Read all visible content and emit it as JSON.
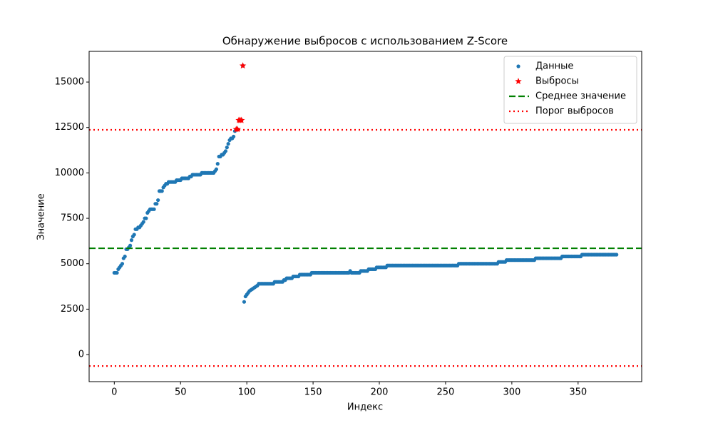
{
  "chart_data": {
    "type": "scatter",
    "title": "Обнаружение выбросов с использованием Z-Score",
    "xlabel": "Индекс",
    "ylabel": "Значение",
    "xlim": [
      -19,
      398
    ],
    "ylim": [
      -1490,
      16690
    ],
    "xticks": [
      0,
      50,
      100,
      150,
      200,
      250,
      300,
      350
    ],
    "yticks": [
      0,
      2500,
      5000,
      7500,
      10000,
      12500,
      15000
    ],
    "legend": "upper right",
    "series": [
      {
        "name": "Данные",
        "color": "#1f77b4",
        "marker": "circle",
        "x": [
          0,
          1,
          2,
          3,
          4,
          5,
          6,
          7,
          8,
          9,
          10,
          11,
          12,
          13,
          14,
          15,
          16,
          17,
          18,
          19,
          20,
          21,
          22,
          23,
          24,
          25,
          26,
          27,
          28,
          29,
          30,
          31,
          32,
          33,
          34,
          35,
          36,
          37,
          38,
          39,
          40,
          41,
          42,
          43,
          44,
          45,
          46,
          47,
          48,
          49,
          50,
          51,
          52,
          53,
          54,
          55,
          56,
          57,
          58,
          59,
          60,
          61,
          62,
          63,
          64,
          65,
          66,
          67,
          68,
          69,
          70,
          71,
          72,
          73,
          74,
          75,
          76,
          77,
          78,
          79,
          80,
          81,
          82,
          83,
          84,
          85,
          86,
          87,
          88,
          89,
          90,
          91,
          92,
          93,
          94,
          95,
          96,
          97,
          98,
          99,
          100,
          101,
          102,
          103,
          104,
          105,
          106,
          107,
          108,
          109,
          110,
          111,
          112,
          113,
          114,
          115,
          116,
          117,
          118,
          119,
          120,
          121,
          122,
          123,
          124,
          125,
          126,
          127,
          128,
          129,
          130,
          131,
          132,
          133,
          134,
          135,
          136,
          137,
          138,
          139,
          140,
          141,
          142,
          143,
          144,
          145,
          146,
          147,
          148,
          149,
          150,
          151,
          152,
          153,
          154,
          155,
          156,
          157,
          158,
          159,
          160,
          161,
          162,
          163,
          164,
          165,
          166,
          167,
          168,
          169,
          170,
          171,
          172,
          173,
          174,
          175,
          176,
          177,
          178,
          179,
          180,
          181,
          182,
          183,
          184,
          185,
          186,
          187,
          188,
          189,
          190,
          191,
          192,
          193,
          194,
          195,
          196,
          197,
          198,
          199,
          200,
          201,
          202,
          203,
          204,
          205,
          206,
          207,
          208,
          209,
          210,
          211,
          212,
          213,
          214,
          215,
          216,
          217,
          218,
          219,
          220,
          221,
          222,
          223,
          224,
          225,
          226,
          227,
          228,
          229,
          230,
          231,
          232,
          233,
          234,
          235,
          236,
          237,
          238,
          239,
          240,
          241,
          242,
          243,
          244,
          245,
          246,
          247,
          248,
          249,
          250,
          251,
          252,
          253,
          254,
          255,
          256,
          257,
          258,
          259,
          260,
          261,
          262,
          263,
          264,
          265,
          266,
          267,
          268,
          269,
          270,
          271,
          272,
          273,
          274,
          275,
          276,
          277,
          278,
          279,
          280,
          281,
          282,
          283,
          284,
          285,
          286,
          287,
          288,
          289,
          290,
          291,
          292,
          293,
          294,
          295,
          296,
          297,
          298,
          299,
          300,
          301,
          302,
          303,
          304,
          305,
          306,
          307,
          308,
          309,
          310,
          311,
          312,
          313,
          314,
          315,
          316,
          317,
          318,
          319,
          320,
          321,
          322,
          323,
          324,
          325,
          326,
          327,
          328,
          329,
          330,
          331,
          332,
          333,
          334,
          335,
          336,
          337,
          338,
          339,
          340,
          341,
          342,
          343,
          344,
          345,
          346,
          347,
          348,
          349,
          350,
          351,
          352,
          353,
          354,
          355,
          356,
          357,
          358,
          359,
          360,
          361,
          362,
          363,
          364,
          365,
          366,
          367,
          368,
          369,
          370,
          371,
          372,
          373,
          374,
          375,
          376,
          377,
          378,
          379
        ],
        "values": [
          4500,
          4500,
          4500,
          4700,
          4800,
          4900,
          5000,
          5300,
          5400,
          5800,
          5800,
          5900,
          6000,
          6300,
          6500,
          6600,
          6900,
          6900,
          7000,
          7000,
          7100,
          7200,
          7300,
          7500,
          7500,
          7800,
          7900,
          8000,
          8000,
          8000,
          8000,
          8300,
          8300,
          8500,
          9000,
          9000,
          9000,
          9200,
          9300,
          9400,
          9400,
          9500,
          9500,
          9500,
          9500,
          9500,
          9500,
          9600,
          9600,
          9600,
          9600,
          9700,
          9700,
          9700,
          9700,
          9700,
          9700,
          9800,
          9800,
          9900,
          9900,
          9900,
          9900,
          9900,
          9900,
          9900,
          10000,
          10000,
          10000,
          10000,
          10000,
          10000,
          10000,
          10000,
          10000,
          10000,
          10100,
          10200,
          10500,
          10900,
          10900,
          11000,
          11000,
          11100,
          11200,
          11400,
          11600,
          11800,
          11900,
          11900,
          12000,
          12300,
          12400,
          12400,
          12900,
          12900,
          12900,
          15900,
          2900,
          3200,
          3300,
          3400,
          3500,
          3550,
          3600,
          3650,
          3700,
          3750,
          3800,
          3900,
          3900,
          3900,
          3900,
          3900,
          3900,
          3900,
          3900,
          3900,
          3900,
          3900,
          3900,
          4000,
          4000,
          4000,
          4000,
          4000,
          4000,
          4000,
          4100,
          4100,
          4200,
          4200,
          4200,
          4200,
          4200,
          4300,
          4300,
          4300,
          4300,
          4300,
          4400,
          4400,
          4400,
          4400,
          4400,
          4400,
          4400,
          4400,
          4400,
          4500,
          4500,
          4500,
          4500,
          4500,
          4500,
          4500,
          4500,
          4500,
          4500,
          4500,
          4500,
          4500,
          4500,
          4500,
          4500,
          4500,
          4500,
          4500,
          4500,
          4500,
          4500,
          4500,
          4500,
          4500,
          4500,
          4500,
          4500,
          4500,
          4600,
          4500,
          4500,
          4500,
          4500,
          4500,
          4500,
          4500,
          4600,
          4600,
          4600,
          4600,
          4600,
          4600,
          4700,
          4700,
          4700,
          4700,
          4700,
          4700,
          4800,
          4800,
          4800,
          4800,
          4800,
          4800,
          4800,
          4800,
          4900,
          4900,
          4900,
          4900,
          4900,
          4900,
          4900,
          4900,
          4900,
          4900,
          4900,
          4900,
          4900,
          4900,
          4900,
          4900,
          4900,
          4900,
          4900,
          4900,
          4900,
          4900,
          4900,
          4900,
          4900,
          4900,
          4900,
          4900,
          4900,
          4900,
          4900,
          4900,
          4900,
          4900,
          4900,
          4900,
          4900,
          4900,
          4900,
          4900,
          4900,
          4900,
          4900,
          4900,
          4900,
          4900,
          4900,
          4900,
          4900,
          4900,
          4900,
          4900,
          4900,
          4900,
          5000,
          5000,
          5000,
          5000,
          5000,
          5000,
          5000,
          5000,
          5000,
          5000,
          5000,
          5000,
          5000,
          5000,
          5000,
          5000,
          5000,
          5000,
          5000,
          5000,
          5000,
          5000,
          5000,
          5000,
          5000,
          5000,
          5000,
          5000,
          5000,
          5000,
          5100,
          5100,
          5100,
          5100,
          5100,
          5100,
          5200,
          5200,
          5200,
          5200,
          5200,
          5200,
          5200,
          5200,
          5200,
          5200,
          5200,
          5200,
          5200,
          5200,
          5200,
          5200,
          5200,
          5200,
          5200,
          5200,
          5200,
          5200,
          5300,
          5300,
          5300,
          5300,
          5300,
          5300,
          5300,
          5300,
          5300,
          5300,
          5300,
          5300,
          5300,
          5300,
          5300,
          5300,
          5300,
          5300,
          5300,
          5300,
          5400,
          5400,
          5400,
          5400,
          5400,
          5400,
          5400,
          5400,
          5400,
          5400,
          5400,
          5400,
          5400,
          5400,
          5400,
          5500,
          5500,
          5500,
          5500,
          5500,
          5500,
          5500,
          5500,
          5500,
          5500,
          5500,
          5500,
          5500,
          5500,
          5500,
          5500,
          5500,
          5500,
          5500,
          5500,
          5500,
          5500,
          5500,
          5500,
          5500,
          5500,
          5500
        ]
      },
      {
        "name": "Выбросы",
        "color": "#ff0000",
        "marker": "star",
        "x": [
          92,
          93,
          94,
          95,
          96,
          97
        ],
        "values": [
          12400,
          12400,
          12900,
          12900,
          12900,
          15900
        ]
      }
    ],
    "hlines": [
      {
        "name": "Среднее значение",
        "color": "#008000",
        "style": "dashed",
        "values": [
          5850
        ]
      },
      {
        "name": "Порог выбросов",
        "color": "#ff0000",
        "style": "dotted",
        "values": [
          12370,
          -630
        ]
      }
    ]
  }
}
